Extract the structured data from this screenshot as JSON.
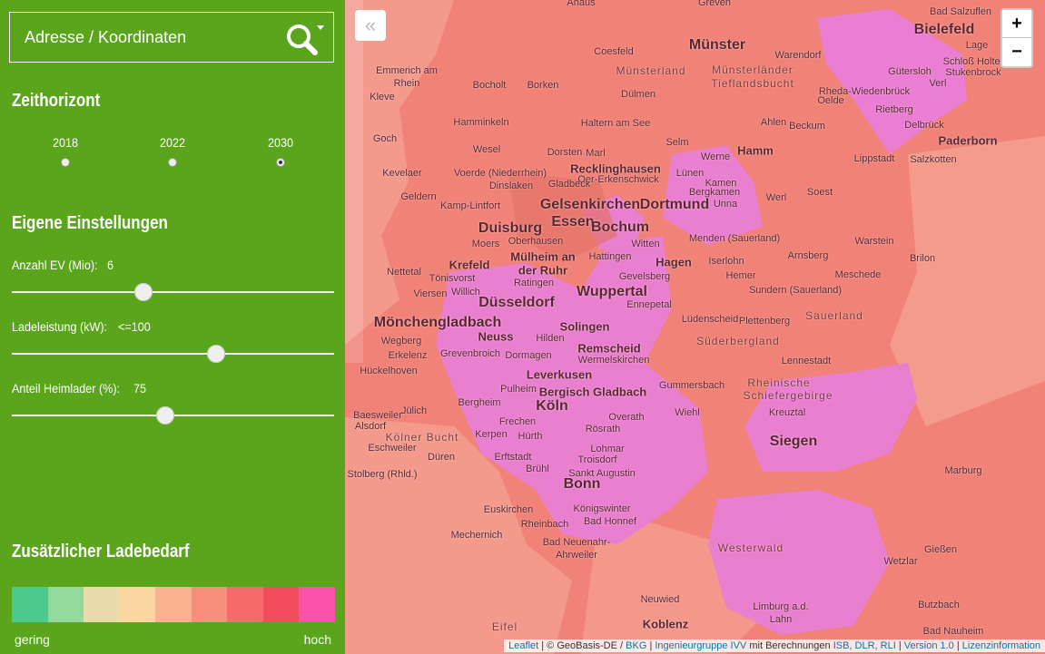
{
  "search": {
    "placeholder": "Adresse / Koordinaten"
  },
  "time_horizon": {
    "title": "Zeithorizont",
    "options": [
      "2018",
      "2022",
      "2030"
    ],
    "selected": 2
  },
  "settings": {
    "title": "Eigene Einstellungen",
    "sliders": [
      {
        "label": "Anzahl EV (Mio):",
        "value": "6"
      },
      {
        "label": "Ladeleistung (kW):",
        "value": "<=100"
      },
      {
        "label": "Anteil Heimlader (%):",
        "value": "75"
      }
    ]
  },
  "legend": {
    "title": "Zusätzlicher Ladebedarf",
    "colors": [
      "#4dc88f",
      "#93d99c",
      "#e8dcab",
      "#fcd6a1",
      "#f9b18f",
      "#f78f7a",
      "#f76a6a",
      "#f24c5d",
      "#fa52a8"
    ],
    "low": "gering",
    "high": "hoch"
  },
  "map": {
    "zoom_in": "+",
    "zoom_out": "−",
    "collapse": "«",
    "labels": [
      "Ahaus",
      "Greven",
      "Bad Salzuflen",
      "Münster",
      "Bielefeld",
      "Lage",
      "Coesfeld",
      "Warendorf",
      "Schloß Holte-",
      "Stukenbrock",
      "Münsterland",
      "Münsterländer",
      "Tieflandsbucht",
      "Emmerich am",
      "Rhein",
      "Gütersloh",
      "Bocholt",
      "Borken",
      "Verl",
      "Rheda-Wiedenbrück",
      "Oelde",
      "Kleve",
      "Dülmen",
      "Hamminkeln",
      "Haltern am See",
      "Ahlen",
      "Beckum",
      "Rietberg",
      "Delbrück",
      "Goch",
      "Paderborn",
      "Selm",
      "Hamm",
      "Wesel",
      "Dorsten",
      "Marl",
      "Werne",
      "Lippstadt",
      "Salzkotten",
      "Recklinghausen",
      "Kevelaer",
      "Voerde (Niederrhein)",
      "Lünen",
      "Oer-Erkenschwick",
      "Kamen",
      "Gladbeck",
      "Dinslaken",
      "Bergkamen",
      "Soest",
      "Geldern",
      "Werl",
      "Gelsenkirchen",
      "Dortmund",
      "Kamp-Lintfort",
      "Unna",
      "Essen",
      "Bochum",
      "Duisburg",
      "Menden (Sauerland)",
      "Warstein",
      "Oberhausen",
      "Moers",
      "Witten",
      "Mülheim an",
      "der Ruhr",
      "Arnsberg",
      "Hattingen",
      "Krefeld",
      "Iserlohn",
      "Hagen",
      "Brilon",
      "Nettetal",
      "Meschede",
      "Hemer",
      "Gevelsberg",
      "Ratingen",
      "Tönisvorst",
      "Wuppertal",
      "Sundern (Sauerland)",
      "Viersen",
      "Willich",
      "Düsseldorf",
      "Ennepetal",
      "Lüdenscheid",
      "Plettenberg",
      "Mönchengladbach",
      "Sauerland",
      "Solingen",
      "Neuss",
      "Hilden",
      "Wegberg",
      "Süderbergland",
      "Remscheid",
      "Grevenbroich",
      "Dormagen",
      "Wermelskirchen",
      "Erkelenz",
      "Lennestadt",
      "Hückelhoven",
      "Leverkusen",
      "Rheinische",
      "Gummersbach",
      "Pulheim",
      "Bergisch Gladbach",
      "Schiefergebirge",
      "Bergheim",
      "Köln",
      "Jülich",
      "Wiehl",
      "Kreuztal",
      "Baesweiler",
      "Overath",
      "Frechen",
      "Alsdorf",
      "Rösrath",
      "Kerpen",
      "Hürth",
      "Siegen",
      "Kölner Bucht",
      "Eschweiler",
      "Lohmar",
      "Erftstadt",
      "Troisdorf",
      "Düren",
      "Brühl",
      "Sankt Augustin",
      "Marburg",
      "Stolberg (Rhld.)",
      "Bonn",
      "Euskirchen",
      "Königswinter",
      "Bad Honnef",
      "Rheinbach",
      "Mechernich",
      "Bad Neuenahr-",
      "Ahrweiler",
      "Westerwald",
      "Gießen",
      "Wetzlar",
      "Neuwied",
      "Limburg a.d.",
      "Lahn",
      "Butzbach",
      "Koblenz",
      "Eifel",
      "Bad Nauheim"
    ],
    "attribution": [
      {
        "text": "Leaflet",
        "link": true
      },
      {
        "text": "| © GeoBasis-DE /",
        "link": false
      },
      {
        "text": "BKG",
        "link": true
      },
      {
        "text": "|",
        "link": false
      },
      {
        "text": "Ingenieurgruppe IVV",
        "link": true
      },
      {
        "text": "mit Berechnungen",
        "link": false
      },
      {
        "text": "ISB, DLR, RLI",
        "link": true
      },
      {
        "text": "|",
        "link": false
      },
      {
        "text": "Version 1.0",
        "link": true
      },
      {
        "text": "|",
        "link": false
      },
      {
        "text": "Lizenzinformation",
        "link": true
      }
    ]
  }
}
